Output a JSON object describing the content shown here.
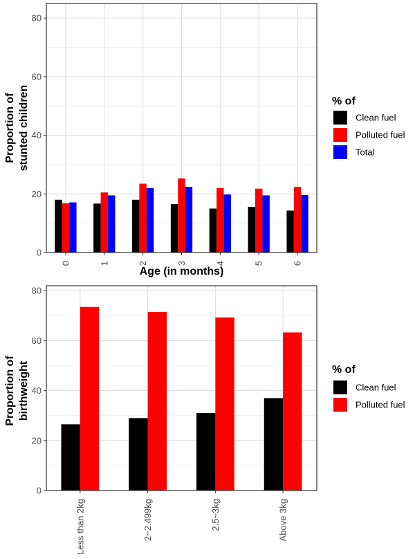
{
  "chart_data": [
    {
      "type": "bar",
      "title": "",
      "xlabel": "Age (in months)",
      "ylabel_lines": [
        "Proportion of",
        "stunted children"
      ],
      "ylim": [
        0,
        85
      ],
      "yticks": [
        0,
        20,
        40,
        60,
        80
      ],
      "grid": true,
      "legend_title": "% of",
      "legend_position": "right",
      "categories": [
        "0",
        "1",
        "2",
        "3",
        "4",
        "5",
        "6"
      ],
      "series": [
        {
          "name": "Clean fuel",
          "color": "#000000",
          "values": [
            18.0,
            16.7,
            18.0,
            16.5,
            15.0,
            15.6,
            14.3
          ]
        },
        {
          "name": "Polluted fuel",
          "color": "#ff0000",
          "values": [
            16.8,
            20.5,
            23.5,
            25.3,
            22.0,
            21.8,
            22.4
          ]
        },
        {
          "name": "Total",
          "color": "#0000ff",
          "values": [
            17.1,
            19.5,
            22.0,
            22.4,
            19.8,
            19.5,
            19.6
          ]
        }
      ]
    },
    {
      "type": "bar",
      "title": "",
      "xlabel": "",
      "ylabel_lines": [
        "Proportion of",
        "birthweight"
      ],
      "ylim": [
        0,
        82
      ],
      "yticks": [
        0,
        20,
        40,
        60,
        80
      ],
      "grid": true,
      "legend_title": "% of",
      "legend_position": "right",
      "categories": [
        "Less than 2kg",
        "2~2.499kg",
        "2.5~3kg",
        "Above 3kg"
      ],
      "series": [
        {
          "name": "Clean fuel",
          "color": "#000000",
          "values": [
            26.5,
            29.0,
            31.0,
            37.0
          ]
        },
        {
          "name": "Polluted fuel",
          "color": "#ff0000",
          "values": [
            73.5,
            71.5,
            69.3,
            63.3
          ]
        }
      ]
    }
  ]
}
